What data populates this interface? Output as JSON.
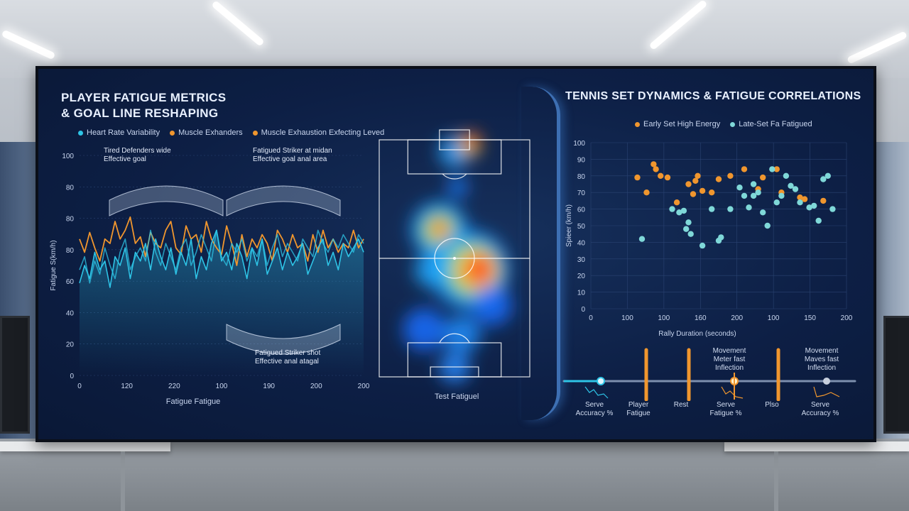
{
  "left_panel": {
    "title_line1": "PLAYER FATIGUE METRICS",
    "title_line2": "& GOAL LINE RESHAPING",
    "legend": [
      {
        "label": "Heart Rate Variability",
        "color": "#2ec4e6"
      },
      {
        "label": "Muscle Exhanders",
        "color": "#f0962e"
      },
      {
        "label": "Muscle Exhaustion Exfecting Leved",
        "color": "#f0962e"
      }
    ],
    "annotations": [
      {
        "line1": "Tired Defenders wide",
        "line2": "Effective goal"
      },
      {
        "line1": "Fatigued Striker at midan",
        "line2": "Effective goal anal area"
      },
      {
        "line1": "Fatigued Striker shot",
        "line2": "Effective anal atagal"
      }
    ]
  },
  "pitch": {
    "label": "Test Fatiguel"
  },
  "right_panel": {
    "title": "TENNIS SET DYNAMICS & FATIGUE CORRELATIONS",
    "timeline": [
      {
        "line1": "Serve",
        "line2": "Accuracy %"
      },
      {
        "line1": "Player",
        "line2": "Fatigue"
      },
      {
        "line1": "Rest",
        "line2": ""
      },
      {
        "line1": "Serve",
        "line2": "Fatigue %"
      },
      {
        "line1": "Plso",
        "line2": ""
      },
      {
        "line1": "Serve",
        "line2": "Accuracy %"
      }
    ],
    "timeline_top": [
      {
        "line1": "Movement",
        "line2": "Meter fast",
        "line3": "Inflection"
      },
      {
        "line1": "Movement",
        "line2": "Maves fast",
        "line3": "Inflection"
      }
    ]
  },
  "chart_data": [
    {
      "type": "line",
      "xlabel": "Fatigue Fatigue",
      "ylabel": "Fatigue S(km/h)",
      "xticks": [
        "0",
        "120",
        "220",
        "100",
        "190",
        "200",
        "200"
      ],
      "yticks": [
        "0",
        "20",
        "40",
        "60",
        "80",
        "80",
        "80",
        "100"
      ],
      "ylim": [
        0,
        100
      ],
      "series": [
        {
          "name": "Muscle Exhanders",
          "color": "#f0962e",
          "values": [
            62,
            56,
            65,
            58,
            52,
            62,
            60,
            70,
            62,
            66,
            72,
            60,
            63,
            54,
            65,
            60,
            58,
            66,
            70,
            58,
            55,
            68,
            62,
            64,
            56,
            70,
            62,
            58,
            55,
            68,
            60,
            50,
            64,
            54,
            62,
            58,
            64,
            60,
            52,
            66,
            62,
            56,
            64,
            58,
            60,
            52,
            64,
            56,
            66,
            58,
            62,
            56,
            60,
            58,
            66,
            58,
            62
          ]
        },
        {
          "name": "Heart Rate Variability",
          "color": "#2ec4e6",
          "values": [
            42,
            50,
            44,
            56,
            48,
            52,
            40,
            54,
            50,
            58,
            44,
            56,
            52,
            60,
            48,
            62,
            54,
            48,
            58,
            46,
            56,
            50,
            62,
            44,
            54,
            48,
            60,
            66,
            52,
            56,
            48,
            60,
            54,
            44,
            58,
            50,
            62,
            46,
            52,
            58,
            48,
            56,
            50,
            54,
            60,
            46,
            52,
            58,
            62,
            50,
            56,
            48,
            60,
            54,
            58,
            62,
            56
          ]
        },
        {
          "name": "Muscle Exhaustion Exfecting Leved",
          "color": "#2ec4e6",
          "values": [
            48,
            54,
            42,
            52,
            46,
            58,
            50,
            44,
            56,
            62,
            48,
            54,
            58,
            52,
            66,
            56,
            50,
            60,
            54,
            48,
            58,
            62,
            50,
            56,
            64,
            58,
            52,
            66,
            54,
            50,
            60,
            56,
            62,
            52,
            58,
            54,
            62,
            50,
            58,
            64,
            54,
            60,
            56,
            52,
            62,
            58,
            54,
            66,
            60,
            56,
            62,
            58,
            64,
            60,
            56,
            64,
            60
          ]
        }
      ]
    },
    {
      "type": "scatter",
      "xlabel": "Rally Duration (seconds)",
      "ylabel": "Spieer (km/h)",
      "xticks": [
        "0",
        "100",
        "100",
        "160",
        "200",
        "100",
        "150",
        "200"
      ],
      "yticks": [
        "0",
        "10",
        "20",
        "30",
        "40",
        "50",
        "60",
        "70",
        "80",
        "90",
        "100"
      ],
      "ylim": [
        0,
        100
      ],
      "legend_placement": "top",
      "series": [
        {
          "name": "Early Set High Energy",
          "color": "#f0962e",
          "points": [
            [
              20,
              79
            ],
            [
              27,
              87
            ],
            [
              28,
              84
            ],
            [
              30,
              80
            ],
            [
              33,
              79
            ],
            [
              37,
              64
            ],
            [
              42,
              75
            ],
            [
              44,
              69
            ],
            [
              45,
              77
            ],
            [
              46,
              80
            ],
            [
              48,
              71
            ],
            [
              52,
              70
            ],
            [
              55,
              78
            ],
            [
              60,
              80
            ],
            [
              66,
              84
            ],
            [
              72,
              72
            ],
            [
              74,
              79
            ],
            [
              80,
              84
            ],
            [
              82,
              70
            ],
            [
              90,
              67
            ],
            [
              92,
              66
            ],
            [
              100,
              65
            ],
            [
              24,
              70
            ]
          ]
        },
        {
          "name": "Late-Set Fa Fatigued",
          "color": "#7fd8d8",
          "points": [
            [
              22,
              42
            ],
            [
              35,
              60
            ],
            [
              38,
              58
            ],
            [
              40,
              59
            ],
            [
              42,
              52
            ],
            [
              41,
              48
            ],
            [
              43,
              45
            ],
            [
              48,
              38
            ],
            [
              52,
              60
            ],
            [
              55,
              41
            ],
            [
              56,
              43
            ],
            [
              60,
              60
            ],
            [
              64,
              73
            ],
            [
              66,
              68
            ],
            [
              68,
              61
            ],
            [
              70,
              68
            ],
            [
              70,
              75
            ],
            [
              72,
              70
            ],
            [
              74,
              58
            ],
            [
              76,
              50
            ],
            [
              78,
              84
            ],
            [
              80,
              64
            ],
            [
              82,
              68
            ],
            [
              84,
              80
            ],
            [
              86,
              74
            ],
            [
              88,
              72
            ],
            [
              90,
              64
            ],
            [
              94,
              61
            ],
            [
              96,
              62
            ],
            [
              98,
              53
            ],
            [
              100,
              78
            ],
            [
              102,
              80
            ],
            [
              104,
              60
            ]
          ]
        }
      ]
    }
  ]
}
